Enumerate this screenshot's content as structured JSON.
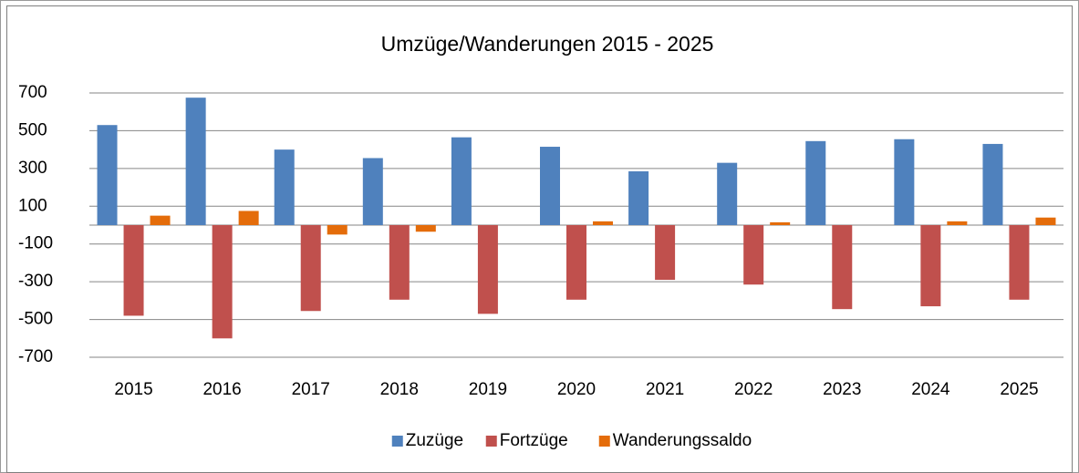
{
  "chart_data": {
    "type": "bar",
    "title": "Umzüge/Wanderungen 2015 - 2025",
    "categories": [
      "2015",
      "2016",
      "2017",
      "2018",
      "2019",
      "2020",
      "2021",
      "2022",
      "2023",
      "2024",
      "2025"
    ],
    "series": [
      {
        "name": "Zuzüge",
        "color": "#4f81bd",
        "values": [
          530,
          675,
          400,
          355,
          465,
          415,
          285,
          330,
          445,
          455,
          430
        ]
      },
      {
        "name": "Fortzüge",
        "color": "#c0504d",
        "values": [
          -480,
          -600,
          -455,
          -395,
          -470,
          -395,
          -290,
          -315,
          -445,
          -430,
          -395
        ]
      },
      {
        "name": "Wanderungssaldo",
        "color": "#e46c0a",
        "values": [
          50,
          75,
          -50,
          -35,
          0,
          20,
          0,
          15,
          0,
          20,
          40
        ]
      }
    ],
    "ylim": [
      -700,
      700
    ],
    "yticks": [
      -700,
      -500,
      -300,
      -100,
      100,
      300,
      500,
      700
    ],
    "grid": true,
    "legend": "bottom"
  }
}
